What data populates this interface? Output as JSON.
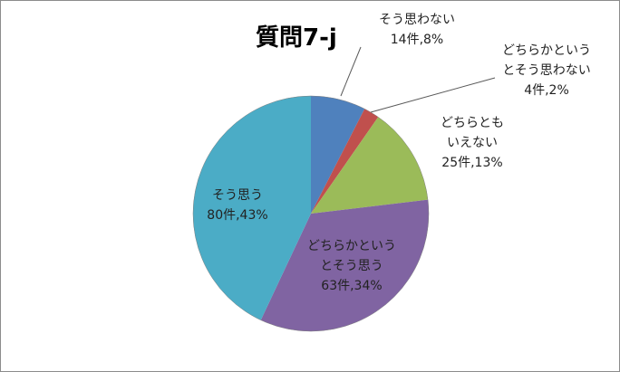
{
  "chart_data": {
    "type": "pie",
    "title": "質問7-j",
    "slices": [
      {
        "category_lines": [
          "そう思わない"
        ],
        "count": 14,
        "percent": 8,
        "value_label": "14件,8%",
        "color": "#4F81BD"
      },
      {
        "category_lines": [
          "どちらかという",
          "とそう思わない"
        ],
        "count": 4,
        "percent": 2,
        "value_label": "4件,2%",
        "color": "#C0504D"
      },
      {
        "category_lines": [
          "どちらとも",
          "いえない"
        ],
        "count": 25,
        "percent": 13,
        "value_label": "25件,13%",
        "color": "#9BBB59"
      },
      {
        "category_lines": [
          "どちらかという",
          "とそう思う"
        ],
        "count": 63,
        "percent": 34,
        "value_label": "63件,34%",
        "color": "#8064A2"
      },
      {
        "category_lines": [
          "そう思う"
        ],
        "count": 80,
        "percent": 43,
        "value_label": "80件,43%",
        "color": "#4BACC6"
      }
    ],
    "start_angle": "12 o'clock",
    "direction": "clockwise"
  }
}
